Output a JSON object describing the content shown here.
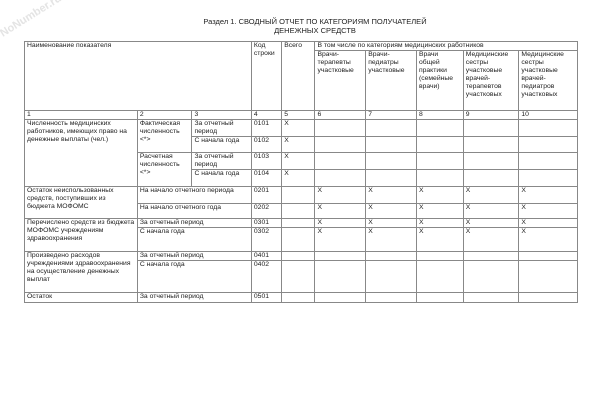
{
  "watermark": "NoNumber.ru",
  "title": [
    "Раздел 1. СВОДНЫЙ ОТЧЕТ ПО КАТЕГОРИЯМ ПОЛУЧАТЕЛЕЙ",
    "ДЕНЕЖНЫХ СРЕДСТВ"
  ],
  "header": {
    "name": "Наименование показателя",
    "code": "Код строки",
    "total": "Всего",
    "group": "В том числе по категориям медицинских работников",
    "categories": [
      "Врачи-терапевты участковые",
      "Врачи-педиатры участковые",
      "Врачи общей практики (семейные врачи)",
      "Медицинские сестры участковые врачей-терапевтов участковых",
      "Медицинские сестры участковые врачей-педиатров участковых"
    ],
    "numbers": [
      "1",
      "2",
      "3",
      "4",
      "5",
      "6",
      "7",
      "8",
      "9",
      "10"
    ]
  },
  "sections": [
    {
      "name": "Численность медицинских работников, имеющих право на денежные выплаты (чел.)",
      "groups": [
        {
          "label": "Фактическая численность <*>",
          "rows": [
            {
              "period": "За отчетный период",
              "code": "0101",
              "total": "X",
              "cells": [
                "",
                "",
                "",
                "",
                ""
              ]
            },
            {
              "period": "С начала года",
              "code": "0102",
              "total": "X",
              "cells": [
                "",
                "",
                "",
                "",
                ""
              ]
            }
          ]
        },
        {
          "label": "Расчетная численность <*>",
          "rows": [
            {
              "period": "За отчетный период",
              "code": "0103",
              "total": "X",
              "cells": [
                "",
                "",
                "",
                "",
                ""
              ]
            },
            {
              "period": "С начала года",
              "code": "0104",
              "total": "X",
              "cells": [
                "",
                "",
                "",
                "",
                ""
              ]
            }
          ]
        }
      ]
    },
    {
      "name": "Остаток неиспользованных средств, поступивших из бюджета МОФОМС",
      "rows": [
        {
          "period": "На начало отчетного периода",
          "code": "0201",
          "total": "",
          "cells": [
            "X",
            "X",
            "X",
            "X",
            "X"
          ]
        },
        {
          "period": "На начало отчетного года",
          "code": "0202",
          "total": "",
          "cells": [
            "X",
            "X",
            "X",
            "X",
            "X"
          ]
        }
      ]
    },
    {
      "name": "Перечислено средств из бюджета МОФОМС учреждениям здравоохранения",
      "rows": [
        {
          "period": "За отчетный период",
          "code": "0301",
          "total": "",
          "cells": [
            "X",
            "X",
            "X",
            "X",
            "X"
          ]
        },
        {
          "period": "С начала года",
          "code": "0302",
          "total": "",
          "cells": [
            "X",
            "X",
            "X",
            "X",
            "X"
          ]
        }
      ]
    },
    {
      "name": "Произведено расходов учреждениями здравоохранения на осуществление денежных выплат",
      "rows": [
        {
          "period": "За отчетный период",
          "code": "0401",
          "total": "",
          "cells": [
            "",
            "",
            "",
            "",
            ""
          ]
        },
        {
          "period": "С начала года",
          "code": "0402",
          "total": "",
          "cells": [
            "",
            "",
            "",
            "",
            ""
          ]
        }
      ]
    },
    {
      "name": "Остаток",
      "rows": [
        {
          "period": "За отчетный период",
          "code": "0501",
          "total": "",
          "cells": [
            "",
            "",
            "",
            "",
            ""
          ]
        }
      ]
    }
  ]
}
